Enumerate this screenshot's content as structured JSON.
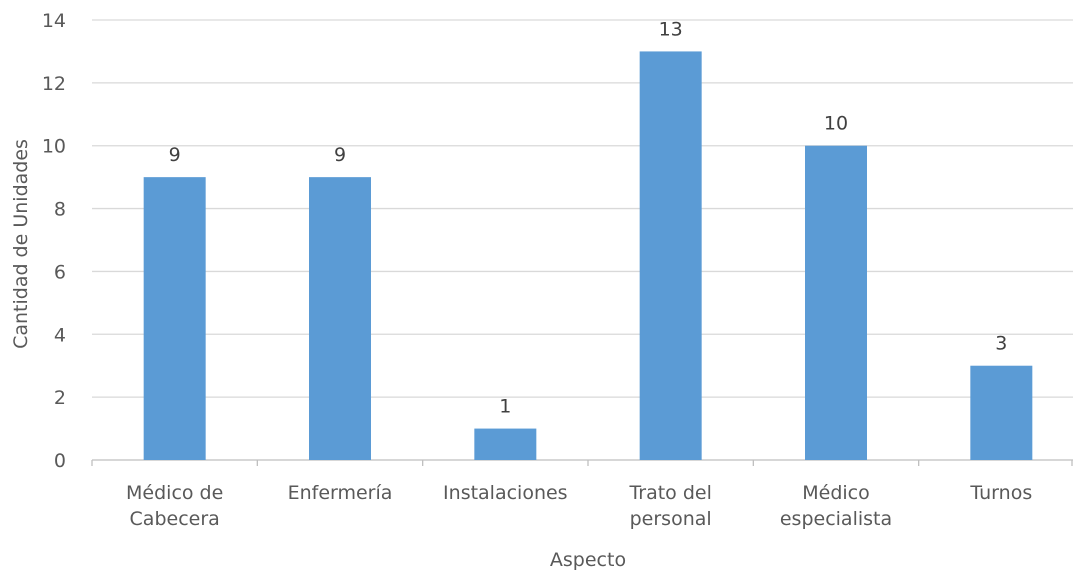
{
  "chart_data": {
    "type": "bar",
    "categories": [
      [
        "Médico de",
        "Cabecera"
      ],
      [
        "Enfermería"
      ],
      [
        "Instalaciones"
      ],
      [
        "Trato del",
        "personal"
      ],
      [
        "Médico",
        "especialista"
      ],
      [
        "Turnos"
      ]
    ],
    "values": [
      9,
      9,
      1,
      13,
      10,
      3
    ],
    "data_labels": [
      "9",
      "9",
      "1",
      "13",
      "10",
      "3"
    ],
    "title": "",
    "xlabel": "Aspecto",
    "ylabel": "Cantidad de Unidades",
    "ylim": [
      0,
      14
    ],
    "yticks": [
      0,
      2,
      4,
      6,
      8,
      10,
      12,
      14
    ],
    "grid": true,
    "legend": "none",
    "colors": {
      "bar": "#5b9bd5",
      "grid": "#d9d9d9",
      "axis": "#bfbfbf"
    }
  }
}
